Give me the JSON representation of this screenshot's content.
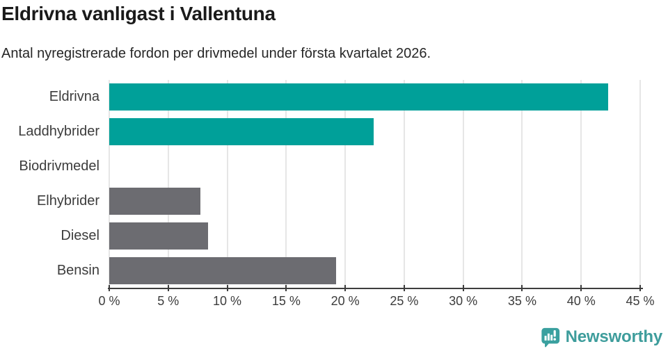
{
  "chart_data": {
    "type": "bar",
    "orientation": "horizontal",
    "title": "Eldrivna vanligast i Vallentuna",
    "subtitle": "Antal nyregistrerade fordon per drivmedel under första kvartalet 2026.",
    "categories": [
      "Eldrivna",
      "Laddhybrider",
      "Biodrivmedel",
      "Elhybrider",
      "Diesel",
      "Bensin"
    ],
    "values": [
      42.3,
      22.4,
      0,
      7.7,
      8.4,
      19.2
    ],
    "value_unit": "%",
    "xlim": [
      0,
      45
    ],
    "x_ticks": [
      0,
      5,
      10,
      15,
      20,
      25,
      30,
      35,
      40,
      45
    ],
    "x_tick_suffix": " %",
    "bar_colors": [
      "#00A099",
      "#00A099",
      "#6C6C71",
      "#6C6C71",
      "#6C6C71",
      "#6C6C71"
    ],
    "highlight_color": "#00A099",
    "default_color": "#6C6C71",
    "grid": true,
    "gridline_color": "#E6E6E6",
    "axis_line_color": "#3D3D3D",
    "legend": "none"
  },
  "branding": {
    "logo_text": "Newsworthy",
    "logo_color": "#3E9D9C",
    "logo_icon_color": "#3AA09F",
    "logo_icon": "newsworthy-speech-bubble-bar-chart-icon"
  }
}
